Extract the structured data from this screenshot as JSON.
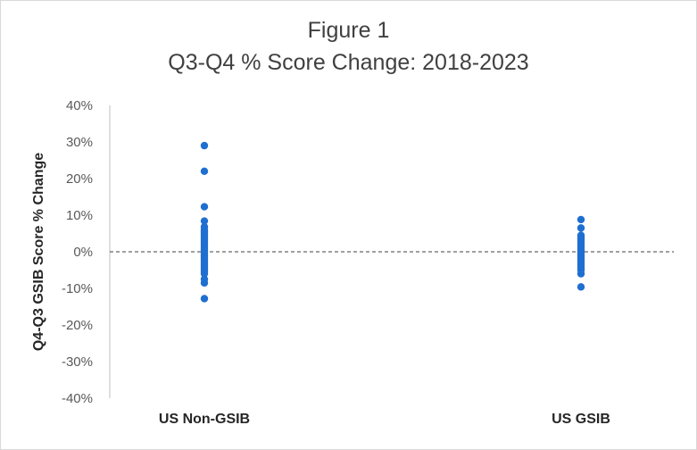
{
  "chart_data": {
    "type": "scatter",
    "title": "Figure 1",
    "subtitle": "Q3-Q4 % Score Change: 2018-2023",
    "xlabel": "",
    "ylabel": "Q4-Q3 GSIB Score % Change",
    "categories": [
      "US Non-GSIB",
      "US GSIB"
    ],
    "ylim": [
      -40,
      40
    ],
    "yticks": [
      -40,
      -30,
      -20,
      -10,
      0,
      10,
      20,
      30,
      40
    ],
    "ytick_labels": [
      "-40%",
      "-30%",
      "-20%",
      "-10%",
      "0%",
      "10%",
      "20%",
      "30%",
      "40%"
    ],
    "reference_line": 0,
    "grid": false,
    "point_color": "#1f6fd1",
    "series": [
      {
        "category": "US Non-GSIB",
        "values": [
          29.0,
          22.0,
          12.3,
          8.4,
          6.8,
          6.0,
          5.5,
          5.0,
          4.5,
          4.0,
          3.5,
          3.0,
          2.5,
          2.0,
          1.5,
          1.0,
          0.5,
          0.0,
          -0.5,
          -1.0,
          -1.5,
          -2.0,
          -2.5,
          -3.0,
          -3.5,
          -4.0,
          -4.5,
          -5.0,
          -5.5,
          -6.0,
          -7.5,
          -8.5,
          -12.8
        ]
      },
      {
        "category": "US GSIB",
        "values": [
          8.8,
          6.5,
          4.5,
          4.0,
          3.5,
          3.0,
          2.5,
          2.0,
          1.5,
          1.0,
          0.5,
          0.0,
          -0.5,
          -1.0,
          -1.5,
          -2.0,
          -2.5,
          -3.0,
          -3.5,
          -4.0,
          -4.5,
          -5.0,
          -6.0,
          -9.6
        ]
      }
    ]
  }
}
